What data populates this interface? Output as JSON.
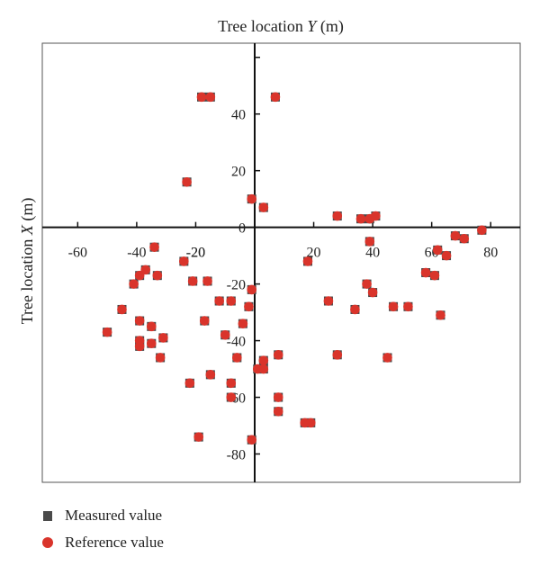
{
  "chart_data": {
    "type": "scatter",
    "xlabel": "Tree location Y (m)",
    "xlabel_main": "Tree location ",
    "xlabel_var": "Y",
    "xlabel_unit": " (m)",
    "ylabel": "Tree location X (m)",
    "ylabel_main": "Tree location ",
    "ylabel_var": "X",
    "ylabel_unit": " (m)",
    "xlim": [
      -72,
      90
    ],
    "ylim": [
      -90,
      65
    ],
    "x_ticks": [
      "-60",
      "-40",
      "-20",
      "20",
      "40",
      "60",
      "80"
    ],
    "x_tick_values": [
      -60,
      -40,
      -20,
      20,
      40,
      60,
      80
    ],
    "y_ticks": [
      "40",
      "20",
      "0",
      "-40",
      "-60",
      "-80"
    ],
    "y_tick_values": [
      40,
      20,
      0,
      -40,
      -60,
      -80
    ],
    "hidden_tick_labels": [
      "-20",
      "-20"
    ],
    "grid": false,
    "series": [
      {
        "name": "Measured value",
        "marker": "square",
        "color": "#4a4a4a",
        "x": [
          -18,
          -15,
          7,
          -23,
          -1,
          3,
          -34,
          -24,
          -21,
          -16,
          -41,
          -39,
          -37,
          -33,
          -45,
          -12,
          -8,
          -17,
          -4,
          -50,
          -39,
          -35,
          -31,
          -39,
          -35,
          -39,
          -32,
          -6,
          -22,
          -15,
          -8,
          -8,
          -10,
          -19,
          -1,
          -2,
          1,
          3,
          3,
          8,
          8,
          8,
          17,
          19,
          25,
          28,
          34,
          38,
          40,
          47,
          52,
          58,
          61,
          62,
          63,
          65,
          68,
          71,
          77,
          28,
          41,
          39,
          36,
          39,
          45,
          18,
          -1
        ],
        "y": [
          46,
          46,
          46,
          16,
          10,
          7,
          -7,
          -12,
          -19,
          -19,
          -20,
          -17,
          -15,
          -17,
          -29,
          -26,
          -26,
          -33,
          -34,
          -37,
          -33,
          -35,
          -39,
          -40,
          -41,
          -42,
          -46,
          -46,
          -55,
          -52,
          -55,
          -60,
          -38,
          -74,
          -75,
          -28,
          -50,
          -47,
          -50,
          -45,
          -60,
          -65,
          -69,
          -69,
          -26,
          -45,
          -29,
          -20,
          -23,
          -28,
          -28,
          -16,
          -17,
          -8,
          -31,
          -10,
          -3,
          -4,
          -1,
          4,
          4,
          3,
          3,
          -5,
          -46,
          -12,
          -22
        ]
      },
      {
        "name": "Reference value",
        "marker": "circle",
        "color": "#d9342b",
        "x": [
          -18,
          -15,
          7,
          -23,
          -1,
          3,
          -34,
          -24,
          -21,
          -16,
          -41,
          -39,
          -37,
          -33,
          -45,
          -12,
          -8,
          -17,
          -4,
          -50,
          -39,
          -35,
          -31,
          -39,
          -35,
          -39,
          -32,
          -6,
          -22,
          -15,
          -8,
          -8,
          -10,
          -19,
          -1,
          -2,
          1,
          3,
          3,
          8,
          8,
          8,
          17,
          19,
          25,
          28,
          34,
          38,
          40,
          47,
          52,
          58,
          61,
          62,
          63,
          65,
          68,
          71,
          77,
          28,
          41,
          39,
          36,
          39,
          45,
          18,
          -1
        ],
        "y": [
          46,
          46,
          46,
          16,
          10,
          7,
          -7,
          -12,
          -19,
          -19,
          -20,
          -17,
          -15,
          -17,
          -29,
          -26,
          -26,
          -33,
          -34,
          -37,
          -33,
          -35,
          -39,
          -40,
          -41,
          -42,
          -46,
          -46,
          -55,
          -52,
          -55,
          -60,
          -38,
          -74,
          -75,
          -28,
          -50,
          -47,
          -50,
          -45,
          -60,
          -65,
          -69,
          -69,
          -26,
          -45,
          -29,
          -20,
          -23,
          -28,
          -28,
          -16,
          -17,
          -8,
          -31,
          -10,
          -3,
          -4,
          -1,
          4,
          4,
          3,
          3,
          -5,
          -46,
          -12,
          -22
        ]
      }
    ]
  },
  "legend": {
    "measured_label": "Measured value",
    "reference_label": "Reference value",
    "measured_color": "#4a4a4a",
    "reference_color": "#d9342b"
  }
}
